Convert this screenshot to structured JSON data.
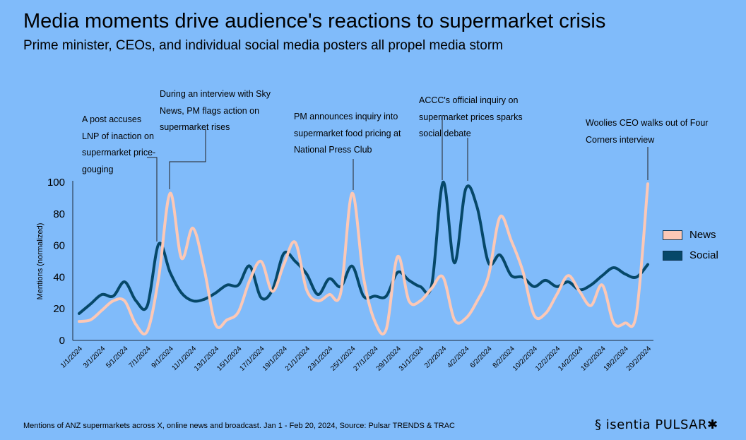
{
  "title": "Media moments drive audience's reactions to supermarket crisis",
  "subtitle": "Prime minister, CEOs, and individual social media posters all propel media storm",
  "footer": "Mentions of ANZ supermarkets across X, online news and broadcast. Jan 1 - Feb 20, 2024, Source: Pulsar TRENDS & TRAC",
  "logo": "isentia PULSAR",
  "annotations": [
    {
      "lines": [
        "A post accuses",
        "LNP of inaction on",
        "supermarket price-",
        "gouging"
      ]
    },
    {
      "lines": [
        "During an interview with Sky",
        "News, PM flags action on",
        "supermarket rises"
      ]
    },
    {
      "lines": [
        "PM announces inquiry into",
        "supermarket food pricing at",
        "National Press Club"
      ]
    },
    {
      "lines": [
        "ACCC's official inquiry on",
        "supermarket prices sparks",
        "social debate"
      ]
    },
    {
      "lines": [
        "Woolies CEO walks out of Four",
        "Corners interview"
      ]
    }
  ],
  "chart_data": {
    "type": "line",
    "title": "Media moments drive audience's reactions to supermarket crisis",
    "xlabel": "",
    "ylabel": "Mentions (normalized)",
    "ylim": [
      0,
      100
    ],
    "yticks": [
      0,
      20,
      40,
      60,
      80,
      100
    ],
    "grid": false,
    "legend": "right",
    "x": [
      "1/1/2024",
      "2/1/2024",
      "3/1/2024",
      "4/1/2024",
      "5/1/2024",
      "6/1/2024",
      "7/1/2024",
      "8/1/2024",
      "9/1/2024",
      "10/1/2024",
      "11/1/2024",
      "12/1/2024",
      "13/1/2024",
      "14/1/2024",
      "15/1/2024",
      "16/1/2024",
      "17/1/2024",
      "18/1/2024",
      "19/1/2024",
      "20/1/2024",
      "21/1/2024",
      "22/1/2024",
      "23/1/2024",
      "24/1/2024",
      "25/1/2024",
      "26/1/2024",
      "27/1/2024",
      "28/1/2024",
      "29/1/2024",
      "30/1/2024",
      "31/1/2024",
      "1/2/2024",
      "2/2/2024",
      "3/2/2024",
      "4/2/2024",
      "5/2/2024",
      "6/2/2024",
      "7/2/2024",
      "8/2/2024",
      "9/2/2024",
      "10/2/2024",
      "11/2/2024",
      "12/2/2024",
      "13/2/2024",
      "14/2/2024",
      "15/2/2024",
      "16/2/2024",
      "17/2/2024",
      "18/2/2024",
      "19/2/2024",
      "20/2/2024"
    ],
    "xticks": [
      "1/1/2024",
      "3/1/2024",
      "5/1/2024",
      "7/1/2024",
      "9/1/2024",
      "11/1/2024",
      "13/1/2024",
      "15/1/2024",
      "17/1/2024",
      "19/1/2024",
      "21/1/2024",
      "23/1/2024",
      "25/1/2024",
      "27/1/2024",
      "29/1/2024",
      "31/1/2024",
      "2/2/2024",
      "4/2/2024",
      "6/2/2024",
      "8/2/2024",
      "10/2/2024",
      "12/2/2024",
      "14/2/2024",
      "16/2/2024",
      "18/2/2024",
      "20/2/2024"
    ],
    "series": [
      {
        "name": "News",
        "color": "#fcc8b6",
        "values": [
          12,
          13,
          19,
          25,
          25,
          10,
          6,
          40,
          93,
          52,
          71,
          45,
          10,
          13,
          18,
          38,
          50,
          31,
          48,
          62,
          32,
          25,
          29,
          30,
          93,
          40,
          12,
          7,
          53,
          25,
          25,
          33,
          40,
          13,
          14,
          25,
          41,
          78,
          63,
          44,
          16,
          17,
          29,
          41,
          31,
          22,
          35,
          11,
          11,
          17,
          99
        ]
      },
      {
        "name": "Social",
        "color": "#064869",
        "values": [
          17,
          23,
          29,
          28,
          37,
          25,
          22,
          61,
          43,
          30,
          25,
          26,
          30,
          35,
          35,
          47,
          27,
          32,
          55,
          50,
          42,
          29,
          39,
          34,
          47,
          28,
          28,
          28,
          43,
          38,
          34,
          35,
          100,
          49,
          96,
          84,
          49,
          54,
          41,
          40,
          34,
          38,
          34,
          37,
          32,
          35,
          41,
          46,
          42,
          40,
          48
        ]
      }
    ]
  }
}
